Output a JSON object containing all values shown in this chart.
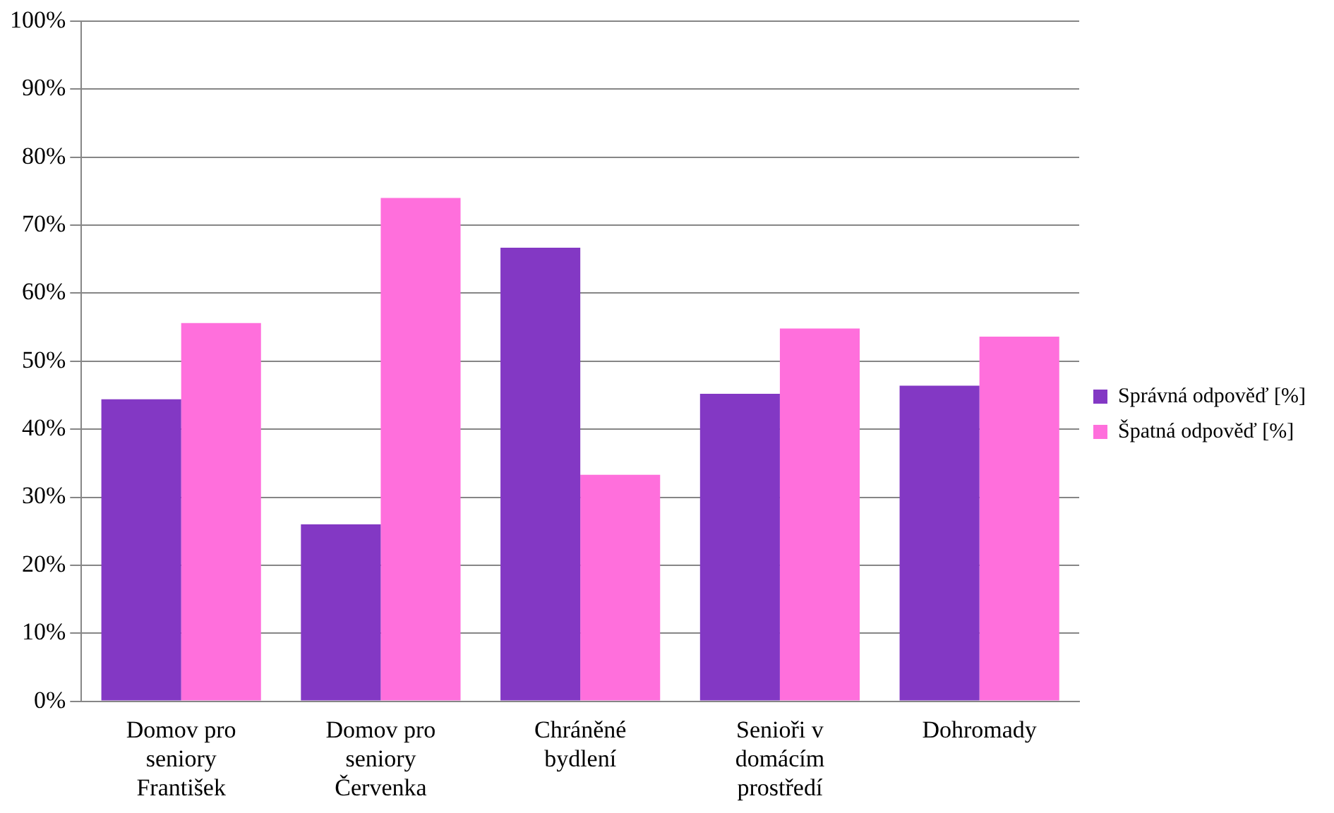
{
  "chart_data": {
    "type": "bar",
    "categories": [
      "Domov pro seniory František",
      "Domov pro seniory Červenka",
      "Chráněné bydlení",
      "Senioři v domácím prostředí",
      "Dohromady"
    ],
    "series": [
      {
        "name": "Správná odpověď [%]",
        "color": "#8338c4",
        "values": [
          44.4,
          26,
          66.7,
          45.2,
          46.4
        ]
      },
      {
        "name": "Špatná odpověď [%]",
        "color": "#ff6fdc",
        "values": [
          55.6,
          74,
          33.3,
          54.8,
          53.6
        ]
      }
    ],
    "ylim": [
      0,
      100
    ],
    "yticks": [
      {
        "value": 0,
        "label": "0%"
      },
      {
        "value": 10,
        "label": "10%"
      },
      {
        "value": 20,
        "label": "20%"
      },
      {
        "value": 30,
        "label": "30%"
      },
      {
        "value": 40,
        "label": "40%"
      },
      {
        "value": 50,
        "label": "50%"
      },
      {
        "value": 60,
        "label": "60%"
      },
      {
        "value": 70,
        "label": "70%"
      },
      {
        "value": 80,
        "label": "80%"
      },
      {
        "value": 90,
        "label": "90%"
      },
      {
        "value": 100,
        "label": "100%"
      }
    ],
    "grid": "y",
    "legend": "right"
  }
}
